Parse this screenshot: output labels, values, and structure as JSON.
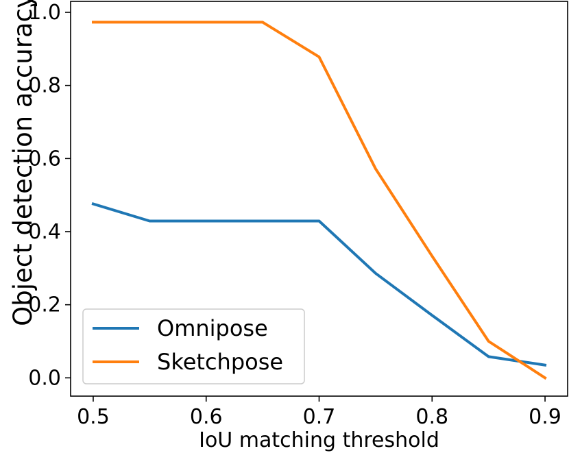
{
  "chart_data": {
    "type": "line",
    "xlabel": "IoU matching threshold",
    "ylabel": "Object detection accuracy",
    "xlim": [
      0.48,
      0.92
    ],
    "ylim": [
      -0.05,
      1.03
    ],
    "x_ticks": [
      "0.5",
      "0.6",
      "0.7",
      "0.8",
      "0.9"
    ],
    "y_ticks": [
      "0.0",
      "0.2",
      "0.4",
      "0.6",
      "0.8",
      "1.0"
    ],
    "grid": false,
    "legend_position": "lower-left",
    "x": [
      0.5,
      0.55,
      0.6,
      0.65,
      0.7,
      0.75,
      0.8,
      0.85,
      0.9
    ],
    "series": [
      {
        "name": "Omnipose",
        "color": "#1f77b4",
        "values": [
          0.476,
          0.429,
          0.429,
          0.429,
          0.429,
          0.286,
          0.171,
          0.058,
          0.035
        ]
      },
      {
        "name": "Sketchpose",
        "color": "#ff7f0e",
        "values": [
          0.973,
          0.973,
          0.973,
          0.973,
          0.878,
          0.572,
          0.333,
          0.1,
          0.0
        ]
      }
    ]
  }
}
